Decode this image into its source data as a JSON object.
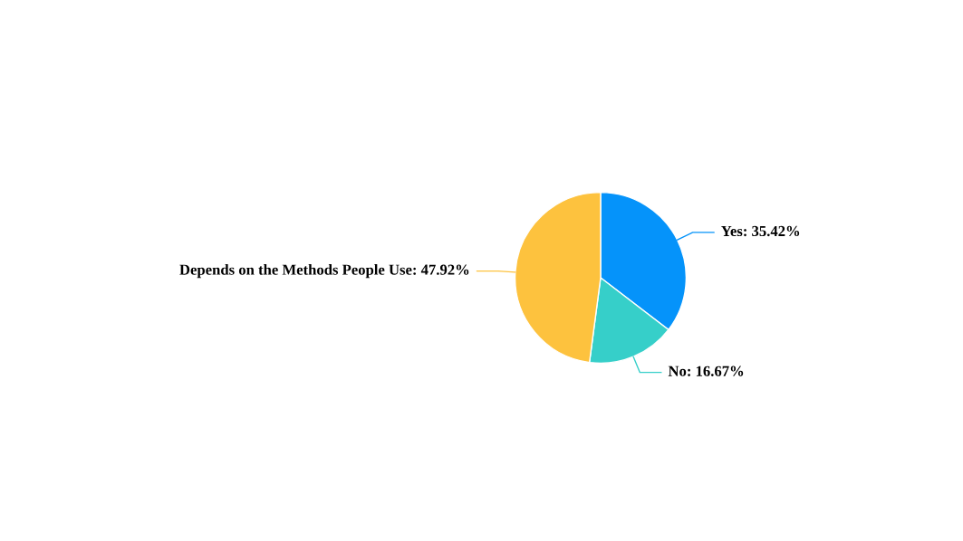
{
  "chart_data": {
    "type": "pie",
    "categories": [
      "Yes",
      "No",
      "Depends on the Methods People Use"
    ],
    "values": [
      35.42,
      16.67,
      47.92
    ],
    "value_labels": [
      "35.42%",
      "16.67%",
      "47.92%"
    ],
    "colors": [
      "#0593fa",
      "#36cfc9",
      "#fdc23e"
    ]
  }
}
